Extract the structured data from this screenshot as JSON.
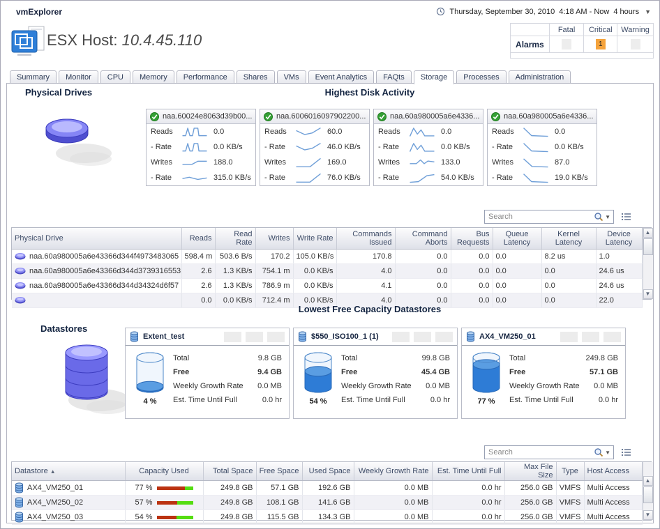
{
  "colors": {
    "sparkline": "#6f9fd8",
    "bar_used": "#bb3311",
    "bar_free": "#55dd11",
    "critical_bg": "#f5a33c",
    "gauge_fill": "#2e7cd6"
  },
  "topbar": {
    "app_title": "vmExplorer",
    "date_text": "Thursday, September 30, 2010",
    "range_text": "4:18 AM - Now",
    "duration_text": "4 hours"
  },
  "header": {
    "title_prefix": "ESX Host:",
    "host": "10.4.45.110"
  },
  "alarms": {
    "row_label": "Alarms",
    "columns": [
      "Fatal",
      "Critical",
      "Warning"
    ],
    "fatal": "",
    "critical": "1",
    "warning": ""
  },
  "tabs": {
    "items": [
      "Summary",
      "Monitor",
      "CPU",
      "Memory",
      "Performance",
      "Shares",
      "VMs",
      "Event Analytics",
      "FAQts",
      "Storage",
      "Processes",
      "Administration"
    ],
    "active": "Storage"
  },
  "sections": {
    "physical_drives": "Physical Drives",
    "highest_disk_activity": "Highest Disk Activity",
    "datastores": "Datastores",
    "lowest_free": "Lowest Free Capacity Datastores"
  },
  "search": {
    "placeholder": "Search"
  },
  "disk_cards": [
    {
      "name": "naa.60024e8063d39b00...",
      "rows": [
        {
          "label": "Reads",
          "value": "0.0"
        },
        {
          "label": "- Rate",
          "value": "0.0 KB/s"
        },
        {
          "label": "Writes",
          "value": "188.0"
        },
        {
          "label": "- Rate",
          "value": "315.0 KB/s"
        }
      ],
      "sparks": [
        [
          [
            4,
            80
          ],
          [
            16,
            80
          ],
          [
            24,
            12
          ],
          [
            32,
            80
          ],
          [
            42,
            80
          ],
          [
            48,
            12
          ],
          [
            62,
            12
          ],
          [
            66,
            80
          ],
          [
            96,
            80
          ]
        ],
        [
          [
            4,
            80
          ],
          [
            16,
            80
          ],
          [
            24,
            12
          ],
          [
            32,
            80
          ],
          [
            42,
            80
          ],
          [
            48,
            12
          ],
          [
            62,
            12
          ],
          [
            66,
            80
          ],
          [
            96,
            80
          ]
        ],
        [
          [
            4,
            62
          ],
          [
            40,
            62
          ],
          [
            62,
            34
          ],
          [
            96,
            34
          ]
        ],
        [
          [
            4,
            52
          ],
          [
            30,
            40
          ],
          [
            62,
            60
          ],
          [
            96,
            46
          ]
        ]
      ]
    },
    {
      "name": "naa.6006016097902200...",
      "rows": [
        {
          "label": "Reads",
          "value": "60.0"
        },
        {
          "label": "- Rate",
          "value": "46.0 KB/s"
        },
        {
          "label": "Writes",
          "value": "169.0"
        },
        {
          "label": "- Rate",
          "value": "76.0 KB/s"
        }
      ],
      "sparks": [
        [
          [
            4,
            34
          ],
          [
            36,
            70
          ],
          [
            64,
            56
          ],
          [
            96,
            10
          ]
        ],
        [
          [
            4,
            34
          ],
          [
            36,
            70
          ],
          [
            64,
            56
          ],
          [
            96,
            10
          ]
        ],
        [
          [
            4,
            84
          ],
          [
            56,
            84
          ],
          [
            96,
            8
          ]
        ],
        [
          [
            4,
            84
          ],
          [
            56,
            84
          ],
          [
            96,
            8
          ]
        ]
      ]
    },
    {
      "name": "naa.60a980005a6e4336...",
      "rows": [
        {
          "label": "Reads",
          "value": "0.0"
        },
        {
          "label": "- Rate",
          "value": "0.0 KB/s"
        },
        {
          "label": "Writes",
          "value": "133.0"
        },
        {
          "label": "- Rate",
          "value": "54.0 KB/s"
        }
      ],
      "sparks": [
        [
          [
            4,
            86
          ],
          [
            18,
            12
          ],
          [
            32,
            66
          ],
          [
            46,
            28
          ],
          [
            60,
            82
          ],
          [
            96,
            82
          ]
        ],
        [
          [
            4,
            86
          ],
          [
            18,
            12
          ],
          [
            32,
            66
          ],
          [
            46,
            28
          ],
          [
            60,
            82
          ],
          [
            96,
            82
          ]
        ],
        [
          [
            4,
            56
          ],
          [
            28,
            56
          ],
          [
            44,
            22
          ],
          [
            58,
            56
          ],
          [
            72,
            32
          ],
          [
            96,
            40
          ]
        ],
        [
          [
            4,
            86
          ],
          [
            36,
            80
          ],
          [
            68,
            26
          ],
          [
            96,
            16
          ]
        ]
      ]
    },
    {
      "name": "naa.60a980005a6e4336...",
      "rows": [
        {
          "label": "Reads",
          "value": "0.0"
        },
        {
          "label": "- Rate",
          "value": "0.0 KB/s"
        },
        {
          "label": "Writes",
          "value": "87.0"
        },
        {
          "label": "- Rate",
          "value": "19.0 KB/s"
        }
      ],
      "sparks": [
        [
          [
            4,
            10
          ],
          [
            34,
            80
          ],
          [
            96,
            86
          ]
        ],
        [
          [
            4,
            10
          ],
          [
            34,
            80
          ],
          [
            96,
            86
          ]
        ],
        [
          [
            4,
            12
          ],
          [
            36,
            82
          ],
          [
            96,
            86
          ]
        ],
        [
          [
            4,
            10
          ],
          [
            34,
            80
          ],
          [
            96,
            86
          ]
        ]
      ]
    }
  ],
  "drive_table": {
    "columns": [
      "Physical Drive",
      "Reads",
      "Read Rate",
      "Writes",
      "Write Rate",
      "Commands Issued",
      "Command Aborts",
      "Bus Requests",
      "Queue Latency",
      "Kernel Latency",
      "Device Latency"
    ],
    "rows": [
      {
        "name": "naa.60a980005a6e43366d344f4973483065",
        "reads": "598.4 m",
        "read_rate": "503.6 B/s",
        "writes": "170.2",
        "write_rate": "105.0 KB/s",
        "commands_issued": "170.8",
        "command_aborts": "0.0",
        "bus_requests": "0.0",
        "queue_latency": "0.0",
        "kernel_latency": "8.2 us",
        "device_latency": "1.0"
      },
      {
        "name": "naa.60a980005a6e43366d344d3739316553",
        "reads": "2.6",
        "read_rate": "1.3 KB/s",
        "writes": "754.1 m",
        "write_rate": "0.0 KB/s",
        "commands_issued": "4.0",
        "command_aborts": "0.0",
        "bus_requests": "0.0",
        "queue_latency": "0.0",
        "kernel_latency": "0.0",
        "device_latency": "24.6 us"
      },
      {
        "name": "naa.60a980005a6e43366d344d34324d6f57",
        "reads": "2.6",
        "read_rate": "1.3 KB/s",
        "writes": "786.9 m",
        "write_rate": "0.0 KB/s",
        "commands_issued": "4.1",
        "command_aborts": "0.0",
        "bus_requests": "0.0",
        "queue_latency": "0.0",
        "kernel_latency": "0.0",
        "device_latency": "24.6 us"
      },
      {
        "name": "",
        "reads": "0.0",
        "read_rate": "0.0 KB/s",
        "writes": "712.4 m",
        "write_rate": "0.0 KB/s",
        "commands_issued": "4.0",
        "command_aborts": "0.0",
        "bus_requests": "0.0",
        "queue_latency": "0.0",
        "kernel_latency": "0.0",
        "device_latency": "22.0"
      }
    ]
  },
  "datastore_cards": [
    {
      "name": "Extent_test",
      "total_label": "Total",
      "total": "9.8 GB",
      "free_label": "Free",
      "free": "9.4 GB",
      "growth_label": "Weekly Growth Rate",
      "growth": "0.0 MB",
      "est_label": "Est. Time Until Full",
      "est": "0.0 hr",
      "pct": 4,
      "pct_label": "4 %"
    },
    {
      "name": "$550_ISO100_1 (1)",
      "total_label": "Total",
      "total": "99.8 GB",
      "free_label": "Free",
      "free": "45.4 GB",
      "growth_label": "Weekly Growth Rate",
      "growth": "0.0 MB",
      "est_label": "Est. Time Until Full",
      "est": "0.0 hr",
      "pct": 54,
      "pct_label": "54 %"
    },
    {
      "name": "AX4_VM250_01",
      "total_label": "Total",
      "total": "249.8 GB",
      "free_label": "Free",
      "free": "57.1 GB",
      "growth_label": "Weekly Growth Rate",
      "growth": "0.0 MB",
      "est_label": "Est. Time Until Full",
      "est": "0.0 hr",
      "pct": 77,
      "pct_label": "77 %"
    }
  ],
  "datastore_table": {
    "columns": [
      "Datastore",
      "Capacity Used",
      "Total Space",
      "Free Space",
      "Used Space",
      "Weekly Growth Rate",
      "Est. Time Until Full",
      "Max File Size",
      "Type",
      "Host Access"
    ],
    "rows": [
      {
        "name": "AX4_VM250_01",
        "capacity_pct": 77,
        "capacity_label": "77 %",
        "total": "249.8 GB",
        "free": "57.1 GB",
        "used": "192.6 GB",
        "growth": "0.0 MB",
        "est": "0.0 hr",
        "max_file": "256.0 GB",
        "type": "VMFS",
        "access": "Multi Access"
      },
      {
        "name": "AX4_VM250_02",
        "capacity_pct": 57,
        "capacity_label": "57 %",
        "total": "249.8 GB",
        "free": "108.1 GB",
        "used": "141.6 GB",
        "growth": "0.0 MB",
        "est": "0.0 hr",
        "max_file": "256.0 GB",
        "type": "VMFS",
        "access": "Multi Access"
      },
      {
        "name": "AX4_VM250_03",
        "capacity_pct": 54,
        "capacity_label": "54 %",
        "total": "249.8 GB",
        "free": "115.5 GB",
        "used": "134.3 GB",
        "growth": "0.0 MB",
        "est": "0.0 hr",
        "max_file": "256.0 GB",
        "type": "VMFS",
        "access": "Multi Access"
      }
    ]
  }
}
